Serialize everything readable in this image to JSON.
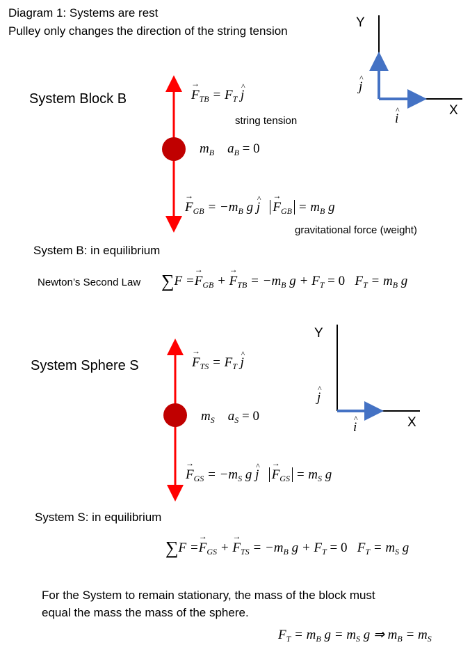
{
  "header": {
    "line1": "Diagram 1:  Systems are rest",
    "line2": "Pulley only changes the direction of the string tension"
  },
  "axes": {
    "y_label": "Y",
    "x_label": "X"
  },
  "block": {
    "title": "System Block B",
    "string_tension_note": "string tension",
    "weight_note": "gravitational force (weight)",
    "equilibrium": "System B: in equilibrium",
    "newton_label": "Newton’s Second Law"
  },
  "sphere": {
    "title": "System Sphere S",
    "equilibrium": "System S: in equilibrium"
  },
  "conclusion": {
    "line1": "For the System to remain stationary, the mass of the block must",
    "line2": "equal the mass the mass of the sphere."
  },
  "colors": {
    "arrow": "#ff0000",
    "ball": "#c00000",
    "unit_vector": "#4472c4",
    "axis": "#000000"
  }
}
